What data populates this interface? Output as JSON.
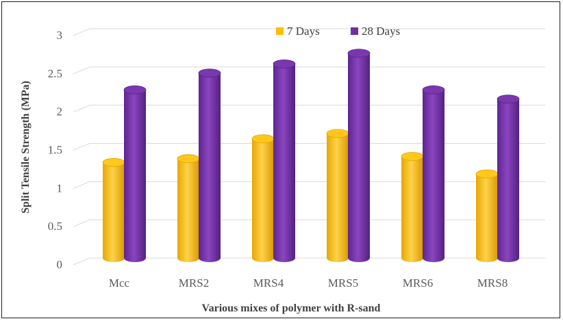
{
  "chart_data": {
    "type": "bar",
    "style": "3d-cylinder",
    "title": "",
    "xlabel": "Various mixes of polymer with R-sand",
    "ylabel": "Split Tensile Strength (MPa)",
    "ylim": [
      0,
      3
    ],
    "yticks": [
      "0",
      "0.5",
      "1",
      "1.5",
      "2",
      "2.5",
      "3"
    ],
    "categories": [
      "Mcc",
      "MRS2",
      "MRS4",
      "MRS5",
      "MRS6",
      "MRS8"
    ],
    "series": [
      {
        "name": "7 Days",
        "color": "#FFC000",
        "values": [
          1.25,
          1.3,
          1.56,
          1.63,
          1.33,
          1.1
        ]
      },
      {
        "name": "28 Days",
        "color": "#7030A0",
        "values": [
          2.2,
          2.42,
          2.54,
          2.68,
          2.2,
          2.08
        ]
      }
    ],
    "grid": true,
    "legend": "top"
  }
}
